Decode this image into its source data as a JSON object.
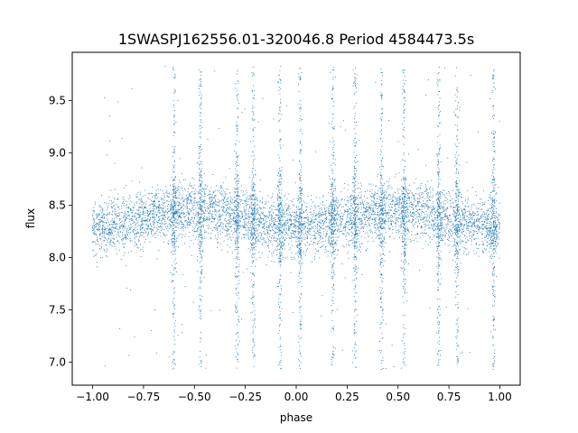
{
  "chart_data": {
    "type": "scatter",
    "title": "1SWASPJ162556.01-320046.8 Period 4584473.5s",
    "xlabel": "phase",
    "ylabel": "flux",
    "xlim": [
      -1.1,
      1.1
    ],
    "ylim": [
      6.78,
      9.96
    ],
    "x_ticks": [
      -1.0,
      -0.75,
      -0.5,
      -0.25,
      0.0,
      0.25,
      0.5,
      0.75,
      1.0
    ],
    "x_tick_labels": [
      "−1.00",
      "−0.75",
      "−0.50",
      "−0.25",
      "0.00",
      "0.25",
      "0.50",
      "0.75",
      "1.00"
    ],
    "y_ticks": [
      7.0,
      7.5,
      8.0,
      8.5,
      9.0,
      9.5
    ],
    "y_tick_labels": [
      "7.0",
      "7.5",
      "8.0",
      "8.5",
      "9.0",
      "9.5"
    ],
    "marker_color": "#1f77b4",
    "grid": false,
    "legend": "none",
    "series": [
      {
        "points_summary": "dense band of several thousand points spanning phase -1.00 to 1.00, flux mostly 8.0-8.7, with vertical streaks at repeating phases",
        "x_range": [
          -1.0,
          1.0
        ],
        "y_core": [
          8.0,
          8.75
        ],
        "y_extent": [
          6.93,
          9.83
        ],
        "streak_phases": [
          -0.6,
          -0.47,
          -0.29,
          -0.21,
          -0.08,
          0.02,
          0.18,
          0.29,
          0.42,
          0.53,
          0.7,
          0.79,
          0.97
        ]
      }
    ]
  }
}
